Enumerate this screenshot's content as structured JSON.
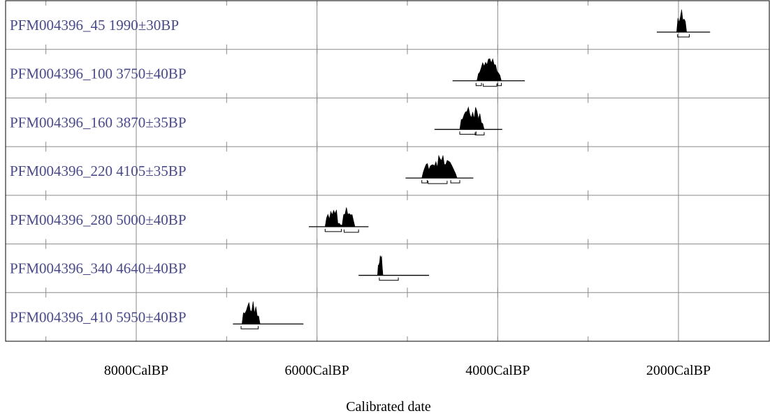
{
  "chart_data": {
    "type": "calibrated-date-plot",
    "xlabel": "Calibrated date",
    "x_unit": "CalBP",
    "x_direction": "reversed",
    "xlim": [
      9000,
      0
    ],
    "major_ticks": [
      8000,
      6000,
      4000,
      2000
    ],
    "minor_ticks": [
      9000,
      7000,
      5000,
      3000,
      1000,
      0
    ],
    "tick_labels": [
      "8000CalBP",
      "6000CalBP",
      "4000CalBP",
      "2000CalBP"
    ],
    "grid": true,
    "label_color": "#4a4a8a",
    "fill_color": "#000000",
    "samples": [
      {
        "id": "PFM004396_45",
        "date": "1990±30BP",
        "range_start": 2240,
        "range_end": 1650,
        "peak_start": 2020,
        "peak_end": 1910,
        "brackets": [
          [
            2010,
            1880
          ]
        ]
      },
      {
        "id": "PFM004396_100",
        "date": "3750±40BP",
        "range_start": 4500,
        "range_end": 3700,
        "peak_start": 4230,
        "peak_end": 3960,
        "brackets": [
          [
            4240,
            4180
          ],
          [
            4160,
            4010
          ],
          [
            4000,
            3960
          ]
        ]
      },
      {
        "id": "PFM004396_160",
        "date": "3870±35BP",
        "range_start": 4700,
        "range_end": 3950,
        "peak_start": 4420,
        "peak_end": 4150,
        "brackets": [
          [
            4420,
            4240
          ],
          [
            4250,
            4150
          ]
        ]
      },
      {
        "id": "PFM004396_220",
        "date": "4105±35BP",
        "range_start": 5020,
        "range_end": 4270,
        "peak_start": 4840,
        "peak_end": 4450,
        "brackets": [
          [
            4840,
            4780
          ],
          [
            4770,
            4560
          ],
          [
            4520,
            4420
          ]
        ]
      },
      {
        "id": "PFM004396_280",
        "date": "5000±40BP",
        "range_start": 6090,
        "range_end": 5430,
        "peak_start": 5910,
        "peak_end": 5580,
        "brackets": [
          [
            5910,
            5730
          ],
          [
            5700,
            5540
          ]
        ]
      },
      {
        "id": "PFM004396_340",
        "date": "4640±40BP",
        "range_start": 5540,
        "range_end": 4760,
        "peak_start": 5330,
        "peak_end": 5270,
        "brackets": [
          [
            5310,
            5100
          ]
        ]
      },
      {
        "id": "PFM004396_410",
        "date": "5950±40BP",
        "range_start": 6930,
        "range_end": 6150,
        "peak_start": 6830,
        "peak_end": 6630,
        "brackets": [
          [
            6840,
            6650
          ]
        ]
      }
    ]
  }
}
